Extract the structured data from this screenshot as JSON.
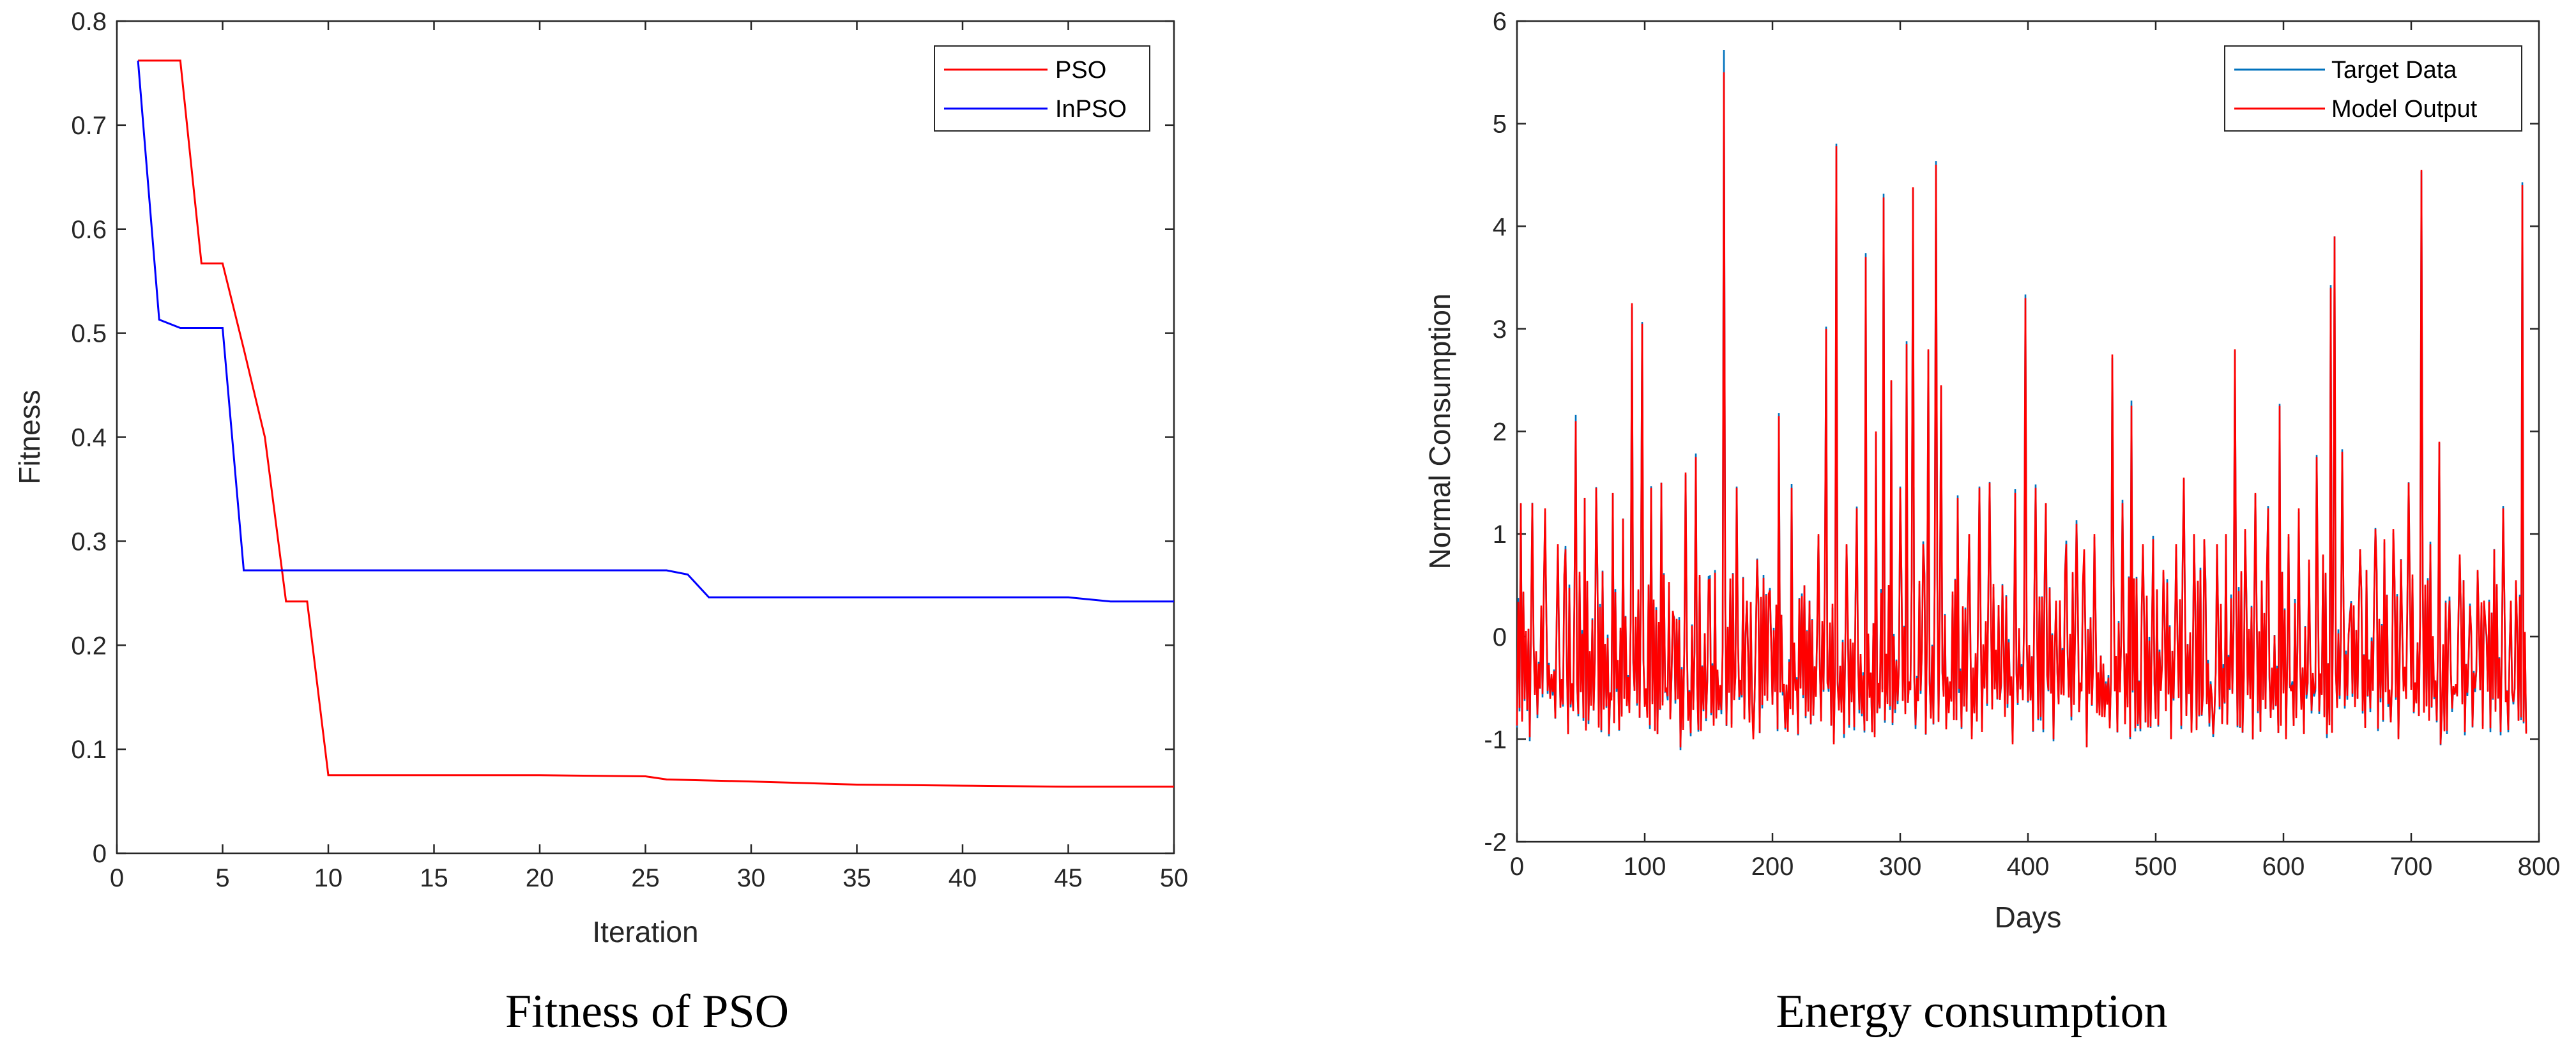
{
  "chart_data": [
    {
      "type": "line",
      "title": "",
      "caption": "Fitness of PSO",
      "xlabel": "Iteration",
      "ylabel": "Fitness",
      "xlim": [
        0,
        50
      ],
      "ylim": [
        0,
        0.8
      ],
      "xticks": [
        "0",
        "5",
        "10",
        "15",
        "20",
        "25",
        "30",
        "35",
        "40",
        "45",
        "50"
      ],
      "yticks": [
        "0",
        "0.1",
        "0.2",
        "0.3",
        "0.4",
        "0.5",
        "0.6",
        "0.7",
        "0.8"
      ],
      "legend_position": "top-right",
      "series": [
        {
          "name": "PSO",
          "color": "#ff0000",
          "points": [
            [
              1,
              0.762
            ],
            [
              2,
              0.762
            ],
            [
              3,
              0.762
            ],
            [
              4,
              0.567
            ],
            [
              5,
              0.567
            ],
            [
              6,
              0.485
            ],
            [
              7,
              0.4
            ],
            [
              8,
              0.242
            ],
            [
              9,
              0.242
            ],
            [
              10,
              0.075
            ],
            [
              15,
              0.075
            ],
            [
              20,
              0.075
            ],
            [
              25,
              0.074
            ],
            [
              26,
              0.071
            ],
            [
              30,
              0.069
            ],
            [
              35,
              0.066
            ],
            [
              40,
              0.065
            ],
            [
              45,
              0.064
            ],
            [
              50,
              0.064
            ]
          ]
        },
        {
          "name": "InPSO",
          "color": "#0000ff",
          "points": [
            [
              1,
              0.762
            ],
            [
              2,
              0.513
            ],
            [
              3,
              0.505
            ],
            [
              4,
              0.505
            ],
            [
              5,
              0.505
            ],
            [
              6,
              0.272
            ],
            [
              10,
              0.272
            ],
            [
              15,
              0.272
            ],
            [
              20,
              0.272
            ],
            [
              25,
              0.272
            ],
            [
              26,
              0.272
            ],
            [
              27,
              0.268
            ],
            [
              28,
              0.246
            ],
            [
              30,
              0.246
            ],
            [
              35,
              0.246
            ],
            [
              40,
              0.246
            ],
            [
              45,
              0.246
            ],
            [
              47,
              0.242
            ],
            [
              50,
              0.242
            ]
          ]
        }
      ]
    },
    {
      "type": "line",
      "title": "",
      "caption": "Energy consumption",
      "xlabel": "Days",
      "ylabel": "Normal Consumption",
      "xlim": [
        0,
        800
      ],
      "ylim": [
        -2,
        6
      ],
      "xticks": [
        "0",
        "100",
        "200",
        "300",
        "400",
        "500",
        "600",
        "700",
        "800"
      ],
      "yticks": [
        "-2",
        "-1",
        "0",
        "1",
        "2",
        "3",
        "4",
        "5",
        "6"
      ],
      "legend_position": "top-right",
      "num_points": 790,
      "peaks": [
        [
          3,
          1.3
        ],
        [
          12,
          1.3
        ],
        [
          22,
          1.25
        ],
        [
          32,
          0.9
        ],
        [
          38,
          0.85
        ],
        [
          46,
          2.1
        ],
        [
          53,
          1.35
        ],
        [
          62,
          1.45
        ],
        [
          75,
          1.4
        ],
        [
          83,
          1.15
        ],
        [
          90,
          3.25
        ],
        [
          98,
          3.05
        ],
        [
          105,
          1.45
        ],
        [
          113,
          1.5
        ],
        [
          122,
          0.25
        ],
        [
          132,
          1.6
        ],
        [
          140,
          1.75
        ],
        [
          150,
          0.55
        ],
        [
          162,
          5.5
        ],
        [
          172,
          1.45
        ],
        [
          180,
          0.35
        ],
        [
          188,
          0.75
        ],
        [
          198,
          0.45
        ],
        [
          205,
          2.15
        ],
        [
          215,
          1.45
        ],
        [
          225,
          0.5
        ],
        [
          236,
          1.0
        ],
        [
          242,
          3.0
        ],
        [
          250,
          4.78
        ],
        [
          258,
          0.9
        ],
        [
          266,
          1.25
        ],
        [
          273,
          3.7
        ],
        [
          281,
          2.0
        ],
        [
          287,
          4.28
        ],
        [
          293,
          2.5
        ],
        [
          300,
          1.45
        ],
        [
          305,
          2.85
        ],
        [
          310,
          4.38
        ],
        [
          318,
          0.9
        ],
        [
          322,
          2.8
        ],
        [
          328,
          4.6
        ],
        [
          332,
          2.45
        ],
        [
          345,
          1.35
        ],
        [
          354,
          1.0
        ],
        [
          362,
          1.45
        ],
        [
          370,
          1.5
        ],
        [
          380,
          0.5
        ],
        [
          390,
          1.4
        ],
        [
          398,
          3.3
        ],
        [
          406,
          1.45
        ],
        [
          414,
          1.3
        ],
        [
          422,
          0.35
        ],
        [
          430,
          0.9
        ],
        [
          438,
          1.1
        ],
        [
          444,
          0.85
        ],
        [
          452,
          1.0
        ],
        [
          466,
          2.75
        ],
        [
          474,
          1.3
        ],
        [
          481,
          2.25
        ],
        [
          490,
          0.9
        ],
        [
          498,
          0.95
        ],
        [
          506,
          0.65
        ],
        [
          516,
          0.9
        ],
        [
          522,
          1.55
        ],
        [
          530,
          1.0
        ],
        [
          538,
          0.95
        ],
        [
          548,
          0.9
        ],
        [
          555,
          1.0
        ],
        [
          562,
          2.8
        ],
        [
          570,
          1.05
        ],
        [
          578,
          1.4
        ],
        [
          588,
          1.25
        ],
        [
          597,
          2.25
        ],
        [
          604,
          1.0
        ],
        [
          612,
          1.25
        ],
        [
          620,
          0.75
        ],
        [
          626,
          1.75
        ],
        [
          631,
          0.8
        ],
        [
          637,
          3.4
        ],
        [
          640,
          3.9
        ],
        [
          646,
          1.8
        ],
        [
          652,
          0.2
        ],
        [
          660,
          0.85
        ],
        [
          665,
          0.65
        ],
        [
          672,
          1.05
        ],
        [
          679,
          0.95
        ],
        [
          686,
          1.05
        ],
        [
          692,
          0.75
        ],
        [
          698,
          1.5
        ],
        [
          708,
          4.55
        ],
        [
          715,
          0.9
        ],
        [
          722,
          1.9
        ],
        [
          730,
          0.35
        ],
        [
          738,
          0.8
        ],
        [
          746,
          0.3
        ],
        [
          752,
          0.65
        ],
        [
          758,
          0.15
        ],
        [
          765,
          0.85
        ],
        [
          772,
          1.25
        ],
        [
          778,
          0.35
        ],
        [
          782,
          0.55
        ],
        [
          787,
          4.4
        ],
        [
          791,
          0.95
        ]
      ],
      "troughs": [
        [
          10,
          -0.98
        ],
        [
          40,
          -0.95
        ],
        [
          72,
          -0.95
        ],
        [
          110,
          -0.95
        ],
        [
          128,
          -1.08
        ],
        [
          150,
          -0.98
        ],
        [
          185,
          -1.0
        ],
        [
          220,
          -0.95
        ],
        [
          248,
          -1.05
        ],
        [
          280,
          -0.98
        ],
        [
          320,
          -0.95
        ],
        [
          356,
          -1.0
        ],
        [
          388,
          -1.05
        ],
        [
          420,
          -1.0
        ],
        [
          446,
          -1.08
        ],
        [
          480,
          -0.98
        ],
        [
          512,
          -1.0
        ],
        [
          545,
          -0.95
        ],
        [
          576,
          -1.0
        ],
        [
          602,
          -1.0
        ],
        [
          634,
          -0.95
        ],
        [
          660,
          -1.08
        ],
        [
          690,
          -1.0
        ],
        [
          723,
          -1.05
        ],
        [
          756,
          -0.9
        ],
        [
          782,
          -0.92
        ]
      ],
      "series": [
        {
          "name": "Target Data",
          "color": "#0072bd"
        },
        {
          "name": "Model Output",
          "color": "#ff0000"
        }
      ]
    }
  ]
}
